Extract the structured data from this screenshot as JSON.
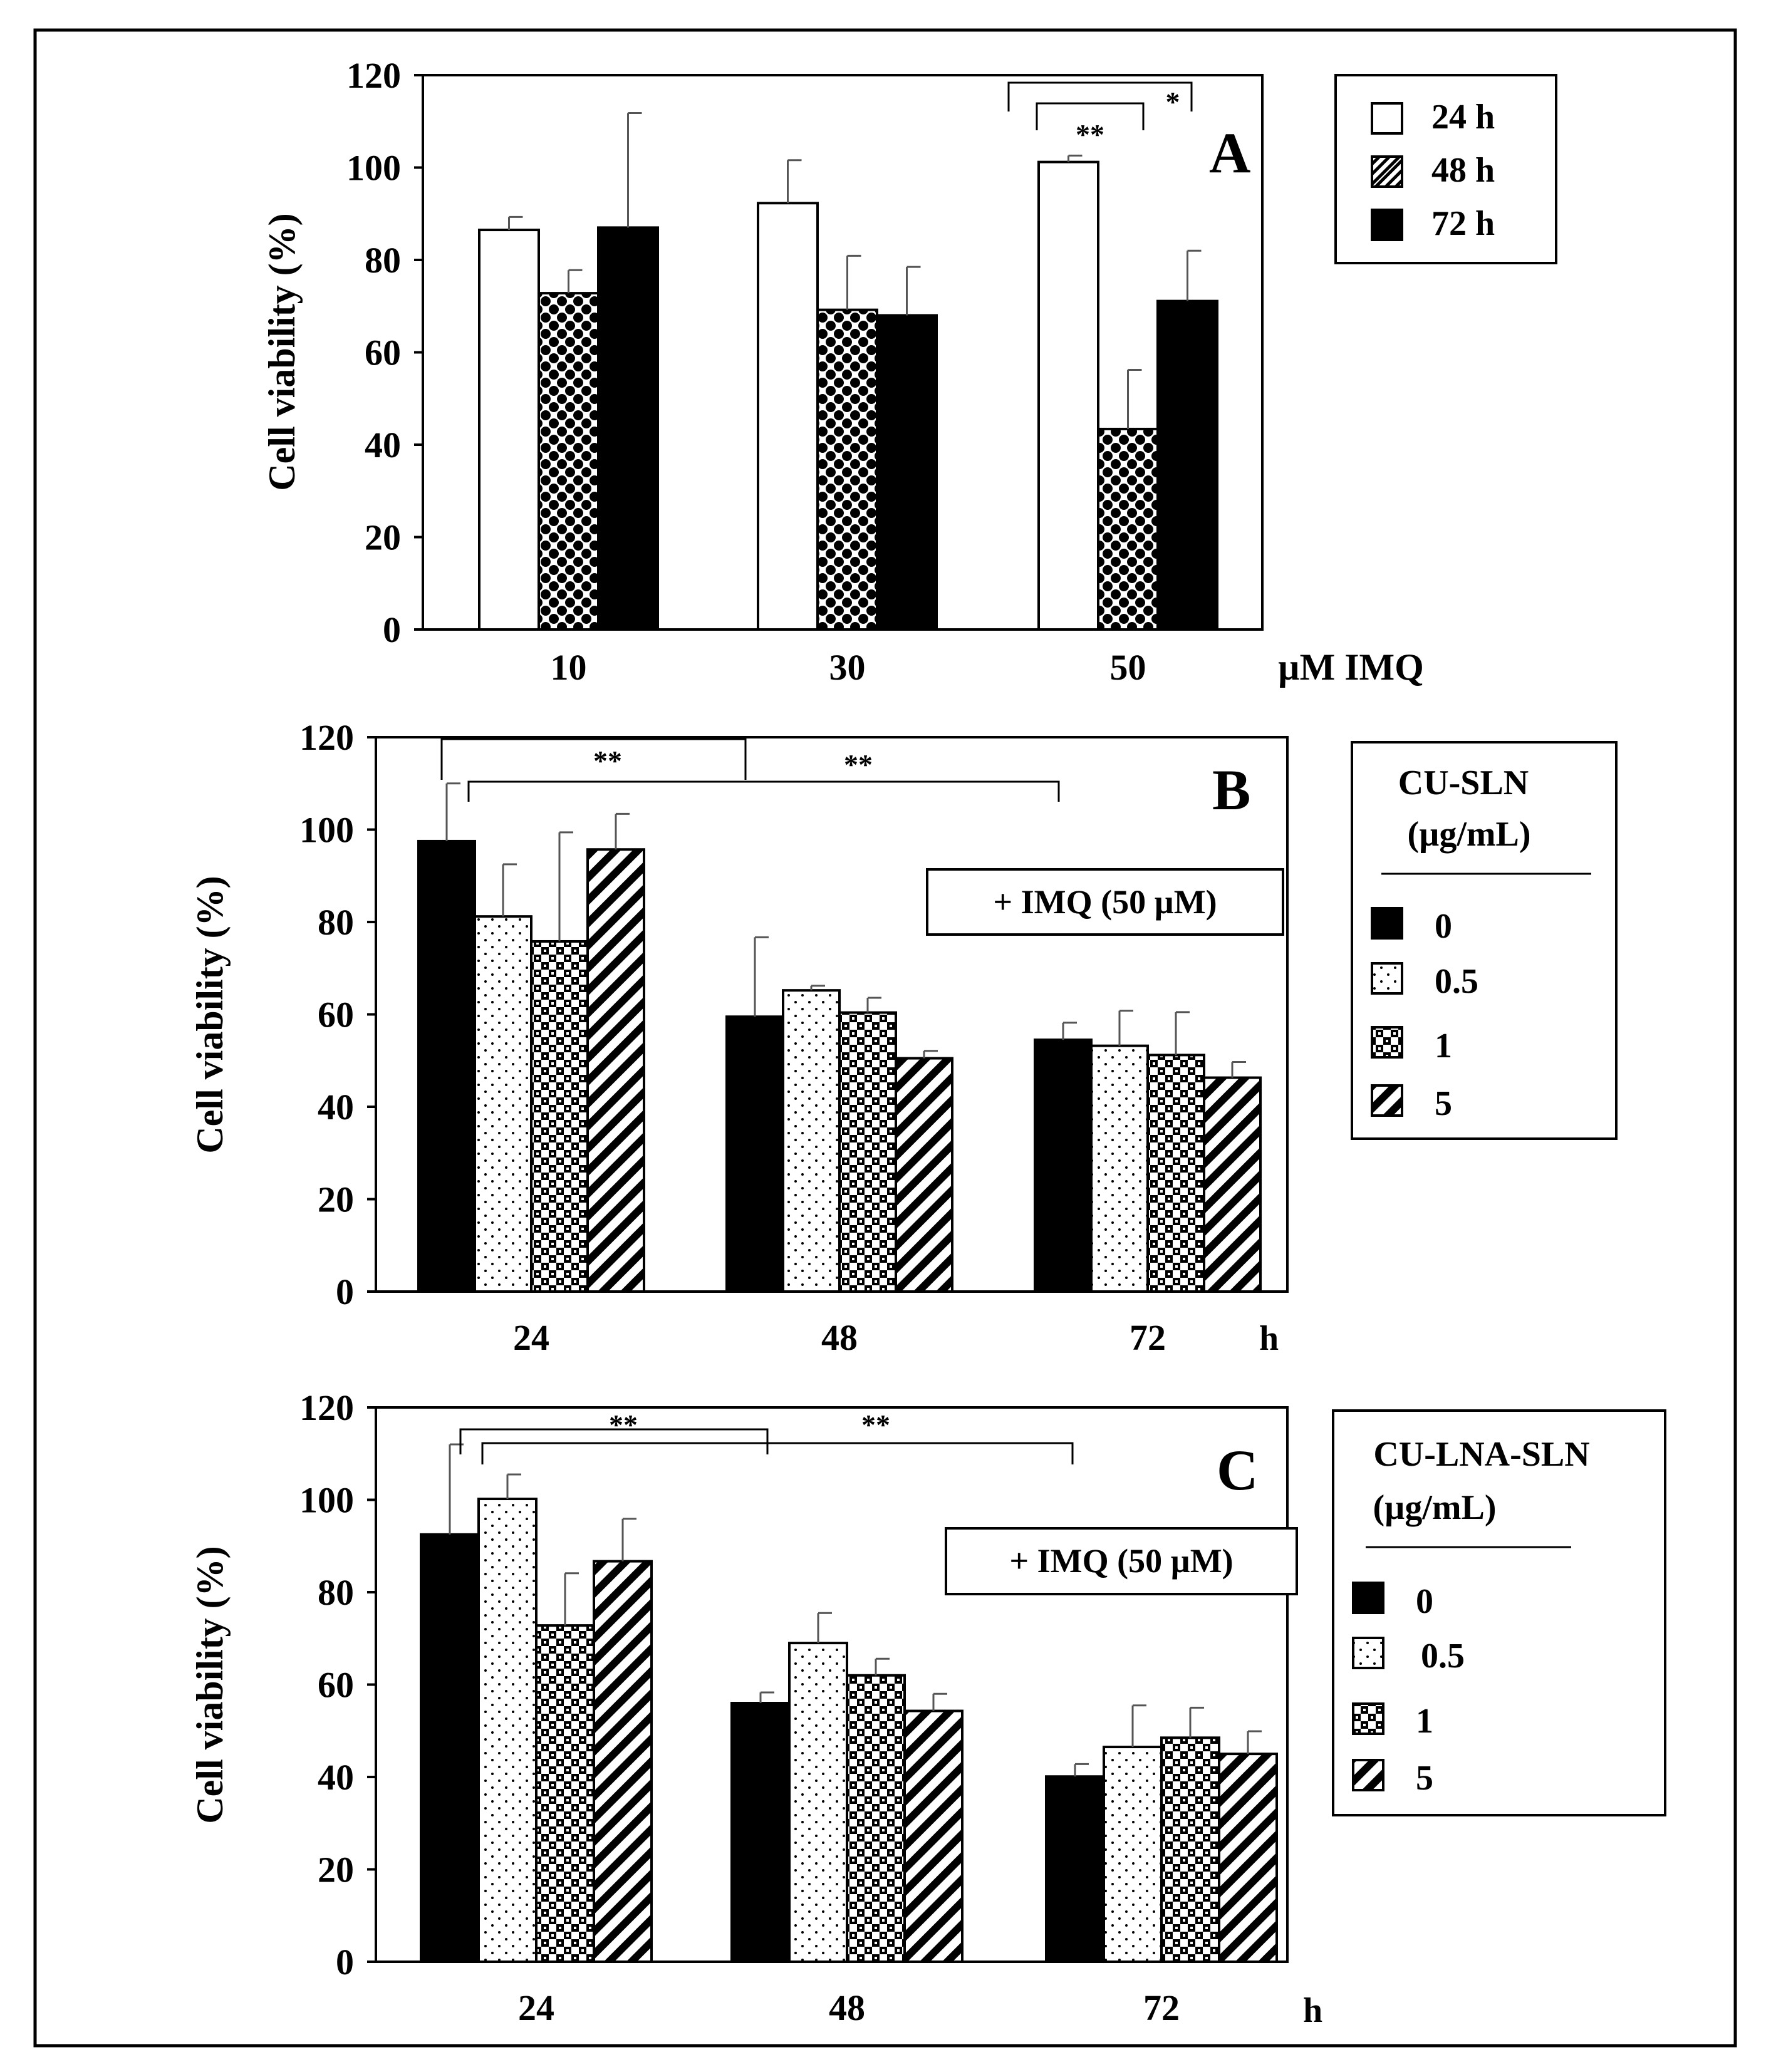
{
  "chart_data": [
    {
      "type": "bar",
      "panel_label": "A",
      "ylabel": "Cell viability (%)",
      "xlabel": "µM IMQ",
      "ylim": [
        0,
        120
      ],
      "yticks": [
        "0",
        "20",
        "40",
        "60",
        "80",
        "100",
        "120"
      ],
      "categories": [
        "10",
        "30",
        "50"
      ],
      "series": [
        {
          "name": "24 h",
          "pattern": "open",
          "values": [
            86.5,
            92.3,
            101.2
          ],
          "errors": [
            2.8,
            9.3,
            1.4
          ]
        },
        {
          "name": "48 h",
          "pattern": "checker",
          "values": [
            72.8,
            69.2,
            43.4
          ],
          "errors": [
            5.0,
            11.7,
            12.8
          ]
        },
        {
          "name": "72 h",
          "pattern": "solid",
          "values": [
            87.0,
            68.0,
            71.1
          ],
          "errors": [
            24.8,
            10.5,
            10.9
          ]
        }
      ],
      "legend": {
        "position": "right",
        "entries": [
          "24 h",
          "48 h",
          "72 h"
        ]
      },
      "significance": [
        "**",
        "*"
      ]
    },
    {
      "type": "bar",
      "panel_label": "B",
      "ylabel": "Cell viability (%)",
      "xlabel": "h",
      "ylim": [
        0,
        120
      ],
      "yticks": [
        "0",
        "20",
        "40",
        "60",
        "80",
        "100",
        "120"
      ],
      "categories": [
        "24",
        "48",
        "72"
      ],
      "annotation": "+ IMQ (50 µM)",
      "series": [
        {
          "name": "0",
          "pattern": "solid",
          "values": [
            97.5,
            59.5,
            54.5
          ],
          "errors": [
            12.5,
            17.2,
            3.7
          ]
        },
        {
          "name": "0.5",
          "pattern": "dots",
          "values": [
            81.2,
            65.2,
            53.2
          ],
          "errors": [
            11.3,
            1.0,
            7.6
          ]
        },
        {
          "name": "1",
          "pattern": "grid",
          "values": [
            75.8,
            60.4,
            51.2
          ],
          "errors": [
            23.6,
            3.2,
            9.3
          ]
        },
        {
          "name": "5",
          "pattern": "diagonal",
          "values": [
            95.7,
            50.5,
            46.3
          ],
          "errors": [
            7.7,
            1.6,
            3.4
          ]
        }
      ],
      "legend": {
        "position": "right",
        "title_line1": "CU-SLN",
        "title_line2": "(µg/mL)",
        "entries": [
          "0",
          "0.5",
          "1",
          "5"
        ]
      },
      "significance": [
        "**",
        "**"
      ]
    },
    {
      "type": "bar",
      "panel_label": "C",
      "ylabel": "Cell viability (%)",
      "xlabel": "h",
      "ylim": [
        0,
        120
      ],
      "yticks": [
        "0",
        "20",
        "40",
        "60",
        "80",
        "100",
        "120"
      ],
      "categories": [
        "24",
        "48",
        "72"
      ],
      "annotation": "+ IMQ (50 µM)",
      "series": [
        {
          "name": "0",
          "pattern": "solid",
          "values": [
            92.5,
            56.0,
            40.1
          ],
          "errors": [
            19.5,
            2.3,
            2.7
          ]
        },
        {
          "name": "0.5",
          "pattern": "dots",
          "values": [
            100.2,
            69.0,
            46.5
          ],
          "errors": [
            5.3,
            6.5,
            9.0
          ]
        },
        {
          "name": "1",
          "pattern": "grid",
          "values": [
            72.8,
            62.0,
            48.5
          ],
          "errors": [
            11.3,
            3.6,
            6.5
          ]
        },
        {
          "name": "5",
          "pattern": "diagonal",
          "values": [
            86.7,
            54.3,
            45.0
          ],
          "errors": [
            9.2,
            3.7,
            4.9
          ]
        }
      ],
      "legend": {
        "position": "right",
        "title_line1": "CU-LNA-SLN",
        "title_line2": "(µg/mL)",
        "entries": [
          "0",
          "0.5",
          "1",
          "5"
        ]
      },
      "significance": [
        "**",
        "**"
      ]
    }
  ]
}
